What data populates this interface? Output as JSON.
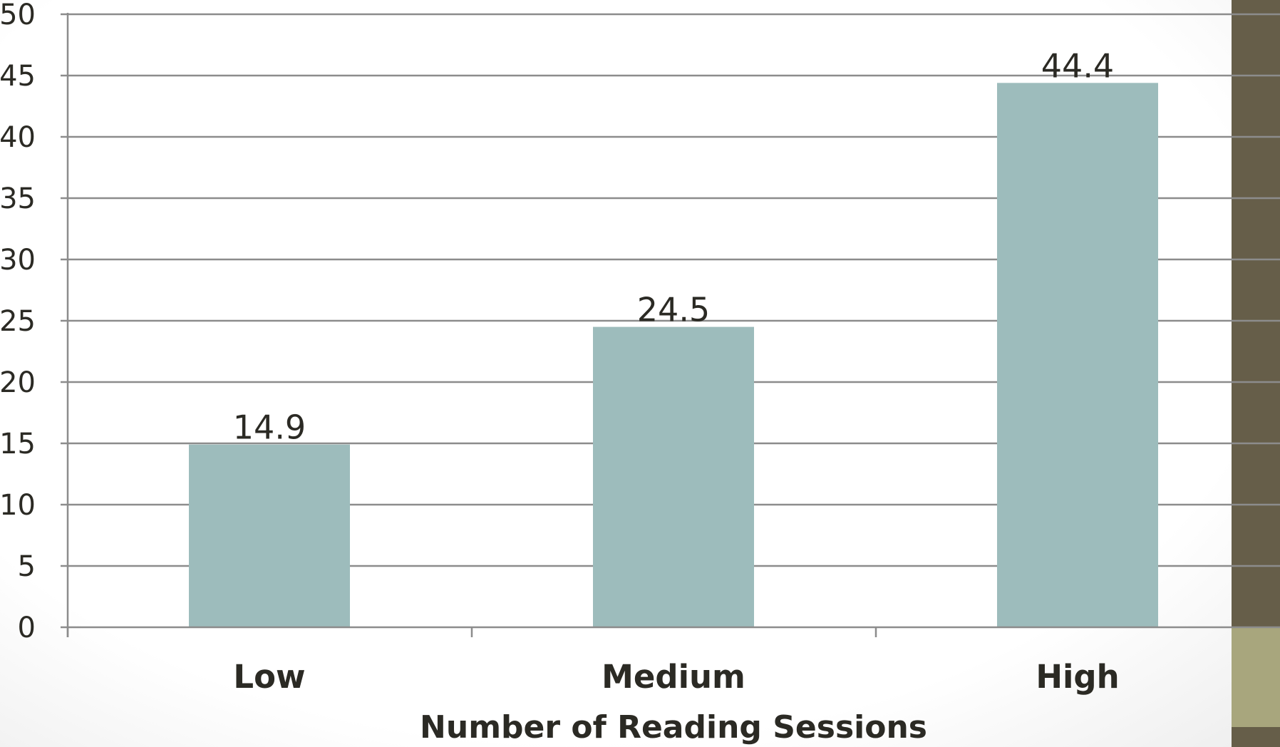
{
  "chart_data": {
    "type": "bar",
    "categories": [
      "Low",
      "Medium",
      "High"
    ],
    "values": [
      14.9,
      24.5,
      44.4
    ],
    "data_labels": [
      "14.9",
      "24.5",
      "44.4"
    ],
    "title": "",
    "xlabel": "Number of Reading Sessions",
    "ylabel": "",
    "ylim": [
      0,
      50
    ],
    "y_ticks": [
      "0",
      "5",
      "10",
      "15",
      "20",
      "25",
      "30",
      "35",
      "40",
      "45",
      "50"
    ],
    "grid": true,
    "legend": "none"
  },
  "colors": {
    "bar": "#9dbcbc",
    "gridline": "#8c8c8c",
    "axis": "#8c8c8c",
    "text": "#2b2a24",
    "side_panel_dark": "#665e49",
    "side_panel_light": "#a8a67d"
  }
}
